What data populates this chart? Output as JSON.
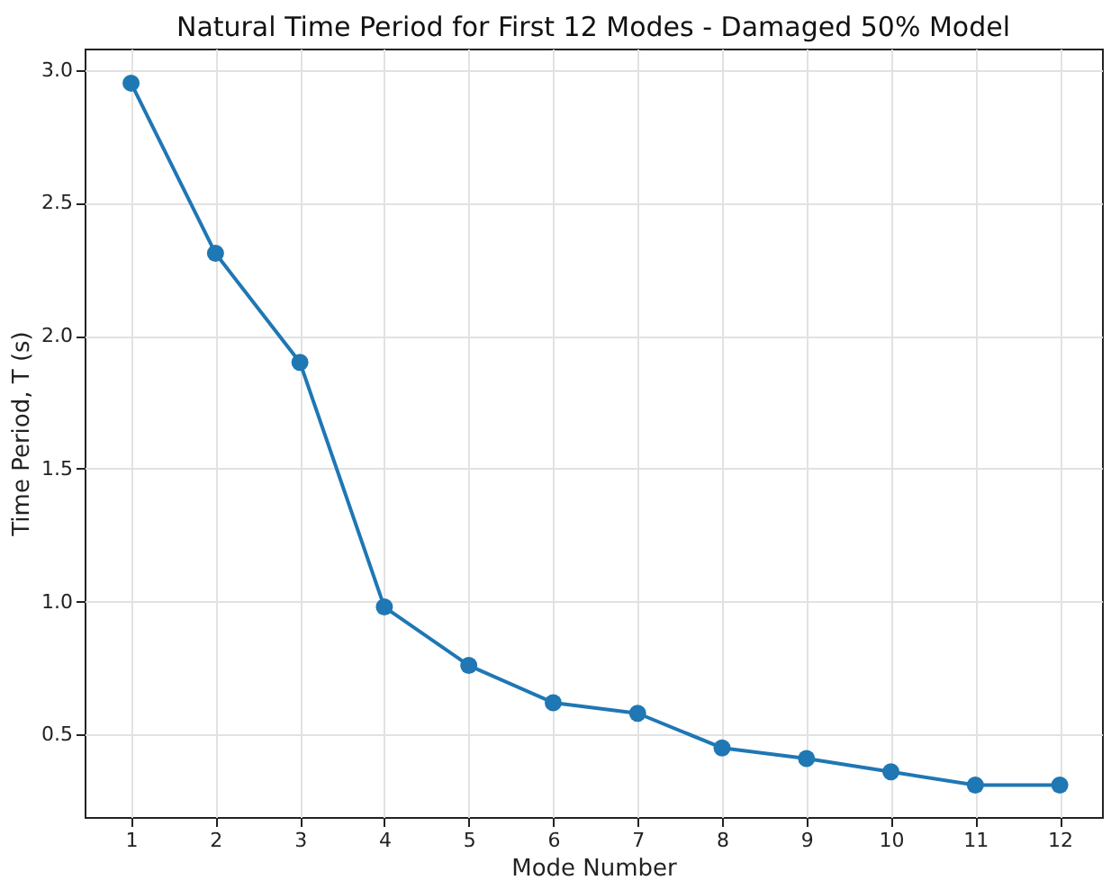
{
  "chart_data": {
    "type": "line",
    "title": "Natural Time Period for First 12 Modes - Damaged 50% Model",
    "xlabel": "Mode Number",
    "ylabel": "Time Period, T (s)",
    "x": [
      1,
      2,
      3,
      4,
      5,
      6,
      7,
      8,
      9,
      10,
      11,
      12
    ],
    "series": [
      {
        "color": "#1f77b4",
        "values": [
          2.95,
          2.31,
          1.9,
          0.98,
          0.76,
          0.62,
          0.58,
          0.45,
          0.41,
          0.36,
          0.31,
          0.31
        ]
      }
    ],
    "xlim": [
      0.45,
      12.5
    ],
    "xticks": [
      1,
      2,
      3,
      4,
      5,
      6,
      7,
      8,
      9,
      10,
      11,
      12
    ],
    "ylim": [
      0.19,
      3.08
    ],
    "yticks": [
      0.5,
      {
        "value": 1,
        "label": "1.0"
      },
      1.5,
      {
        "value": 2,
        "label": "2.0"
      },
      2.5,
      {
        "value": 3,
        "label": "3.0"
      }
    ],
    "grid": true,
    "marker": "circle",
    "line_style": "solid"
  }
}
